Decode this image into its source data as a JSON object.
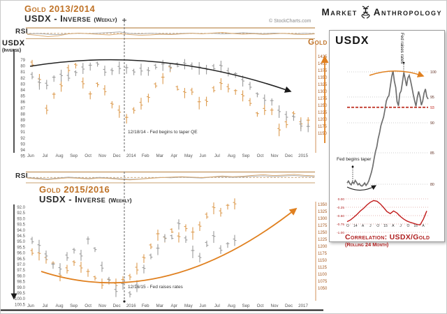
{
  "header": {
    "title_gold": "Gold 2013/2014",
    "title_usdx": "USDX - Inverse",
    "weekly_suffix": "(Weekly)",
    "watermark": "© StockCharts.com"
  },
  "section2": {
    "title_gold": "Gold 2015/2016",
    "title_usdx": "USDX - Inverse"
  },
  "logo": {
    "word_left": "Market",
    "word_right": "Anthropology"
  },
  "labels": {
    "rsi": "RSI",
    "usdx_axis_line1": "USDX",
    "usdx_axis_line2": "(Inverse)",
    "gold_axis": "Gold"
  },
  "annotations": {
    "taper_qe": "12/18/14 - Fed begins to taper QE",
    "raise_rates": "12/16/15 - Fed raises rates",
    "fed_raises_rates": "Fed raises rates",
    "fed_begins_taper": "Fed begins taper"
  },
  "inset": {
    "title": "USDX",
    "corr_title": "Correlation: USDX/Gold",
    "corr_subtitle": "(Rolling 24 Month)"
  },
  "colors": {
    "orange_title": "#bf7226",
    "orange_bar": "#dd9c50",
    "orange_arrow": "#e0801f",
    "tan_line": "#c9a172",
    "gray_bar": "#9b9b9b",
    "dark": "#1a1a1a",
    "red": "#bb2222",
    "tick": "#555555",
    "right_tick_top": "#a5581f",
    "inset_tick": "#5f2d20"
  },
  "chart_data": [
    {
      "id": "top_main",
      "type": "bar",
      "title": "Gold 2013/2014 vs USDX-Inverse (Weekly)",
      "x_ticks": [
        "Jun",
        "Jul",
        "Aug",
        "Sep",
        "Oct",
        "Nov",
        "Dec",
        "2014",
        "Feb",
        "Mar",
        "Apr",
        "May",
        "Jun",
        "Jul",
        "Aug",
        "Sep",
        "Oct",
        "Nov",
        "Dec",
        "2015"
      ],
      "y_left_ticks": [
        "79",
        "80",
        "81",
        "82",
        "83",
        "84",
        "85",
        "86",
        "87",
        "88",
        "89",
        "90",
        "91",
        "92",
        "93",
        "94",
        "95"
      ],
      "y_right_ticks": [
        "1425",
        "1400",
        "1375",
        "1350",
        "1325",
        "1300",
        "1275",
        "1250",
        "1225",
        "1200",
        "1175",
        "1150"
      ],
      "y_left_range": [
        79,
        95
      ],
      "y_right_range": [
        1425,
        1150
      ],
      "series": [
        {
          "name": "Gold",
          "axis": "right",
          "values": [
            1400,
            1340,
            1235,
            1285,
            1320,
            1380,
            1392,
            1330,
            1286,
            1324,
            1304,
            1252,
            1228,
            1202,
            1232,
            1256,
            1276,
            1322,
            1346,
            1383,
            1312,
            1294,
            1300,
            1258,
            1264,
            1308,
            1326,
            1312,
            1298,
            1284,
            1262,
            1218,
            1234,
            1228,
            1162,
            1186,
            1218,
            1186,
            1192
          ]
        },
        {
          "name": "USDX-Inverse",
          "axis": "left",
          "values": [
            81.6,
            82.9,
            83.1,
            82.1,
            81.6,
            81.8,
            81.2,
            80.4,
            80.1,
            79.7,
            80.8,
            80.9,
            80.3,
            80.5,
            81.0,
            80.6,
            80.9,
            80.1,
            79.9,
            80.2,
            79.8,
            79.7,
            80.0,
            80.4,
            80.6,
            80.2,
            80.1,
            81.0,
            81.5,
            82.5,
            83.3,
            84.8,
            85.6,
            86.0,
            87.6,
            88.3,
            88.6,
            89.9,
            90.3
          ]
        }
      ]
    },
    {
      "id": "top_rsi",
      "type": "line",
      "title": "RSI",
      "series": [
        {
          "name": "rsi-gray",
          "values": [
            0.45,
            0.5,
            0.42,
            0.38,
            0.45,
            0.52,
            0.48,
            0.55,
            0.6,
            0.68,
            0.5,
            0.45,
            0.52,
            0.48,
            0.42,
            0.5,
            0.55,
            0.48,
            0.52,
            0.45,
            0.5,
            0.58,
            0.52,
            0.48,
            0.55,
            0.5,
            0.45,
            0.52,
            0.48
          ]
        },
        {
          "name": "rsi-orange",
          "values": [
            0.4,
            0.3,
            0.15,
            0.25,
            0.45,
            0.55,
            0.48,
            0.4,
            0.35,
            0.45,
            0.38,
            0.3,
            0.35,
            0.42,
            0.38,
            0.45,
            0.52,
            0.45,
            0.55,
            0.62,
            0.5,
            0.42,
            0.48,
            0.4,
            0.45,
            0.52,
            0.42,
            0.38,
            0.45
          ]
        }
      ]
    },
    {
      "id": "bottom_main",
      "type": "bar",
      "title": "Gold 2015/2016 vs USDX-Inverse (Weekly)",
      "x_ticks": [
        "Jun",
        "Jul",
        "Aug",
        "Sep",
        "Oct",
        "Nov",
        "Dec",
        "2016",
        "Feb",
        "Mar",
        "Apr",
        "May",
        "Jun",
        "Jul",
        "Aug",
        "Sep",
        "Oct",
        "Nov",
        "Dec",
        "2017"
      ],
      "y_left_ticks": [
        "92.0",
        "92.5",
        "93.0",
        "93.5",
        "94.0",
        "94.5",
        "95.0",
        "95.5",
        "96.0",
        "96.5",
        "97.0",
        "97.5",
        "98.0",
        "98.5",
        "99.0",
        "99.5",
        "100.0",
        "100.5"
      ],
      "y_right_ticks": [
        "1350",
        "1325",
        "1300",
        "1275",
        "1250",
        "1225",
        "1200",
        "1175",
        "1150",
        "1125",
        "1100",
        "1075",
        "1050"
      ],
      "y_left_range": [
        92.0,
        100.5
      ],
      "y_right_range": [
        1350,
        1050
      ],
      "series": [
        {
          "name": "Gold",
          "axis": "right",
          "values": [
            1180,
            1172,
            1155,
            1135,
            1096,
            1118,
            1140,
            1125,
            1105,
            1086,
            1066,
            1076,
            1062,
            1076,
            1090,
            1120,
            1156,
            1200,
            1240,
            1228,
            1256,
            1232,
            1266,
            1246,
            1272,
            1310,
            1336,
            1322,
            1342,
            1352
          ]
        },
        {
          "name": "USDX-Inverse",
          "axis": "left",
          "values": [
            94.9,
            95.4,
            96.2,
            97.1,
            97.4,
            96.3,
            95.8,
            96.2,
            94.9,
            95.7,
            97.2,
            98.4,
            99.3,
            98.8,
            99.6,
            98.9,
            97.4,
            96.3,
            95.7,
            94.7,
            94.6,
            93.5,
            94.8,
            95.9,
            96.4,
            95.2,
            94.6,
            95.7,
            95.3,
            94.9
          ]
        }
      ]
    },
    {
      "id": "bottom_rsi",
      "type": "line",
      "title": "RSI",
      "series": [
        {
          "name": "rsi-gray",
          "values": [
            0.5,
            0.42,
            0.35,
            0.45,
            0.55,
            0.48,
            0.4,
            0.52,
            0.45,
            0.38,
            0.3,
            0.35,
            0.45,
            0.52,
            0.48,
            0.55,
            0.5,
            0.45,
            0.55,
            0.6,
            0.52,
            0.58,
            0.65,
            0.7,
            0.62,
            0.68,
            0.72,
            0.65,
            0.6
          ]
        },
        {
          "name": "rsi-orange",
          "values": [
            0.45,
            0.35,
            0.28,
            0.38,
            0.48,
            0.42,
            0.35,
            0.45,
            0.4,
            0.3,
            0.25,
            0.32,
            0.42,
            0.5,
            0.55,
            0.6,
            0.55,
            0.5,
            0.58,
            0.68,
            0.6,
            0.65,
            0.75,
            0.82,
            0.72,
            0.78,
            0.85,
            0.75,
            0.7
          ]
        }
      ]
    },
    {
      "id": "inset_usdx",
      "type": "line",
      "title": "USDX",
      "x_ticks": [
        "O",
        "14",
        "A",
        "J",
        "O",
        "15",
        "A",
        "J",
        "O",
        "16",
        "A"
      ],
      "y_ticks": [
        {
          "label": "100",
          "value": 100,
          "red": false
        },
        {
          "label": "95",
          "value": 95,
          "red": false
        },
        {
          "label": "93",
          "value": 93,
          "red": true
        },
        {
          "label": "90",
          "value": 90,
          "red": false
        },
        {
          "label": "85",
          "value": 85,
          "red": false
        },
        {
          "label": "80",
          "value": 80,
          "red": false
        }
      ],
      "support_level": 93,
      "series": [
        {
          "name": "USDX",
          "values": [
            80.2,
            80.5,
            80.1,
            79.9,
            80.4,
            80.1,
            80.6,
            80.3,
            79.9,
            80.1,
            79.8,
            79.7,
            79.9,
            80.2,
            79.8,
            80.1,
            80.5,
            81.2,
            81.9,
            82.8,
            84.1,
            85.2,
            86.0,
            87.4,
            88.3,
            89.5,
            90.3,
            91.1,
            92.5,
            94.2,
            94.9,
            95.3,
            97.2,
            99.0,
            100.2,
            98.1,
            96.9,
            94.1,
            93.3,
            95.7,
            96.2,
            98.0,
            99.9,
            98.6,
            97.2,
            98.8,
            99.3,
            98.2,
            96.9,
            95.5,
            94.3,
            93.2,
            94.9,
            96.1,
            95.0,
            93.4,
            94.2,
            95.8,
            96.6,
            95.1,
            94.6
          ]
        }
      ]
    },
    {
      "id": "inset_correlation",
      "type": "line",
      "title": "Correlation: USDX/Gold (Rolling 24 Month)",
      "y_ticks": [
        "0.00",
        "-0.25",
        "-0.50",
        "-0.75",
        "-1.00"
      ],
      "ylim": [
        -1.0,
        0.0
      ],
      "series": [
        {
          "name": "correlation",
          "values": [
            -0.68,
            -0.63,
            -0.55,
            -0.46,
            -0.36,
            -0.28,
            -0.18,
            -0.1,
            -0.05,
            -0.07,
            -0.15,
            -0.26,
            -0.38,
            -0.44,
            -0.36,
            -0.42,
            -0.52,
            -0.6,
            -0.66,
            -0.7,
            -0.73,
            -0.76,
            -0.78,
            -0.6,
            -0.36
          ]
        }
      ]
    }
  ]
}
